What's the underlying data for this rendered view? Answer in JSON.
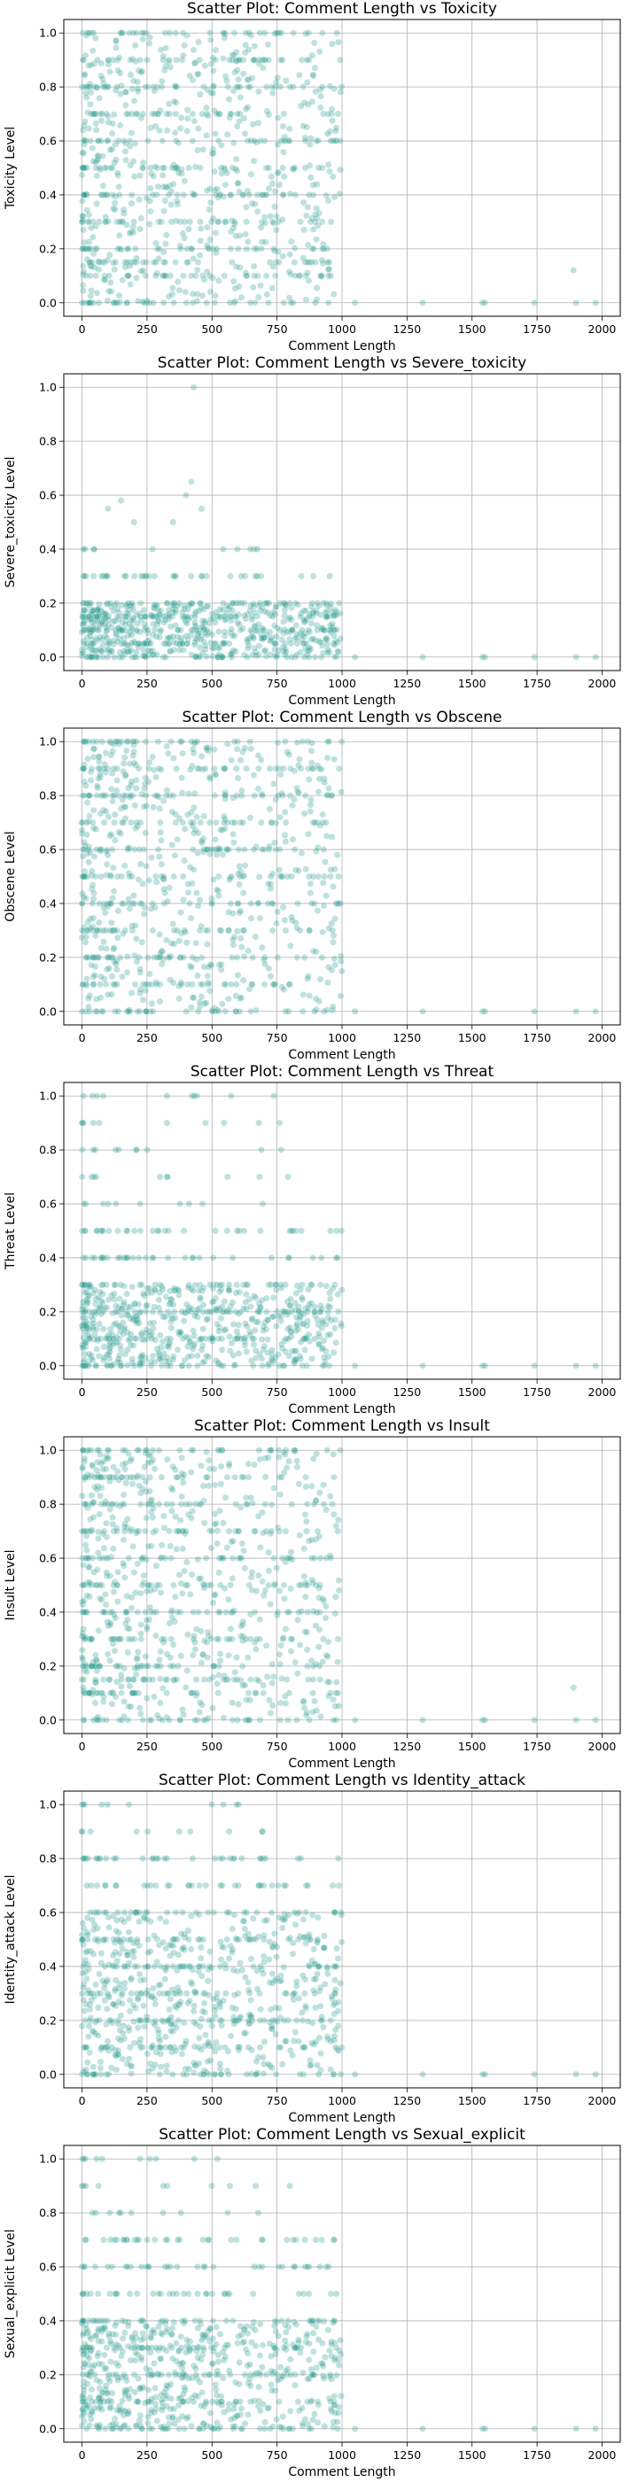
{
  "chart_data": [
    {
      "type": "scatter",
      "title": "Scatter Plot: Comment Length vs Toxicity",
      "xlabel": "Comment Length",
      "ylabel": "Toxicity Level",
      "xlim": [
        -70,
        2070
      ],
      "ylim": [
        -0.05,
        1.05
      ],
      "xticks": [
        0,
        250,
        500,
        750,
        1000,
        1250,
        1500,
        1750,
        2000
      ],
      "yticks": [
        0.0,
        0.2,
        0.4,
        0.6,
        0.8,
        1.0
      ],
      "grid": true,
      "color": "#2a9d8f",
      "series": [
        {
          "main_x_range": [
            0,
            1000
          ],
          "main_y_range": [
            0.0,
            1.0
          ],
          "bands": [
            0.0,
            0.1,
            0.15,
            0.2,
            0.3,
            0.4,
            0.5,
            0.6,
            0.7,
            0.8,
            0.9,
            1.0
          ],
          "sparse_bands": [],
          "outliers": [
            [
              1050,
              0.0
            ],
            [
              1310,
              0.0
            ],
            [
              1540,
              0.0
            ],
            [
              1550,
              0.0
            ],
            [
              1740,
              0.0
            ],
            [
              1890,
              0.12
            ],
            [
              1900,
              0.0
            ],
            [
              1975,
              0.0
            ]
          ]
        }
      ]
    },
    {
      "type": "scatter",
      "title": "Scatter Plot: Comment Length vs Severe_toxicity",
      "xlabel": "Comment Length",
      "ylabel": "Severe_toxicity Level",
      "xlim": [
        -70,
        2070
      ],
      "ylim": [
        -0.05,
        1.05
      ],
      "xticks": [
        0,
        250,
        500,
        750,
        1000,
        1250,
        1500,
        1750,
        2000
      ],
      "yticks": [
        0.0,
        0.2,
        0.4,
        0.6,
        0.8,
        1.0
      ],
      "grid": true,
      "color": "#2a9d8f",
      "series": [
        {
          "main_x_range": [
            0,
            1000
          ],
          "main_y_range": [
            0.0,
            0.2
          ],
          "bands": [
            0.0,
            0.05,
            0.1,
            0.15,
            0.2,
            0.3
          ],
          "sparse_bands": [
            0.4
          ],
          "outliers": [
            [
              1050,
              0.0
            ],
            [
              1310,
              0.0
            ],
            [
              1540,
              0.0
            ],
            [
              1550,
              0.0
            ],
            [
              1740,
              0.0
            ],
            [
              1900,
              0.0
            ],
            [
              1975,
              0.0
            ],
            [
              100,
              0.55
            ],
            [
              150,
              0.58
            ],
            [
              200,
              0.5
            ],
            [
              350,
              0.5
            ],
            [
              400,
              0.6
            ],
            [
              420,
              0.65
            ],
            [
              430,
              1.0
            ],
            [
              460,
              0.55
            ]
          ]
        }
      ]
    },
    {
      "type": "scatter",
      "title": "Scatter Plot: Comment Length vs Obscene",
      "xlabel": "Comment Length",
      "ylabel": "Obscene Level",
      "xlim": [
        -70,
        2070
      ],
      "ylim": [
        -0.05,
        1.05
      ],
      "xticks": [
        0,
        250,
        500,
        750,
        1000,
        1250,
        1500,
        1750,
        2000
      ],
      "yticks": [
        0.0,
        0.2,
        0.4,
        0.6,
        0.8,
        1.0
      ],
      "grid": true,
      "color": "#2a9d8f",
      "series": [
        {
          "main_x_range": [
            0,
            1000
          ],
          "main_y_range": [
            0.0,
            1.0
          ],
          "bands": [
            0.0,
            0.1,
            0.2,
            0.3,
            0.4,
            0.5,
            0.6,
            0.7,
            0.8,
            0.9,
            1.0
          ],
          "sparse_bands": [],
          "outliers": [
            [
              1050,
              0.0
            ],
            [
              1310,
              0.0
            ],
            [
              1540,
              0.0
            ],
            [
              1550,
              0.0
            ],
            [
              1740,
              0.0
            ],
            [
              1900,
              0.0
            ],
            [
              1975,
              0.0
            ]
          ]
        }
      ]
    },
    {
      "type": "scatter",
      "title": "Scatter Plot: Comment Length vs Threat",
      "xlabel": "Comment Length",
      "ylabel": "Threat Level",
      "xlim": [
        -70,
        2070
      ],
      "ylim": [
        -0.05,
        1.05
      ],
      "xticks": [
        0,
        250,
        500,
        750,
        1000,
        1250,
        1500,
        1750,
        2000
      ],
      "yticks": [
        0.0,
        0.2,
        0.4,
        0.6,
        0.8,
        1.0
      ],
      "grid": true,
      "color": "#2a9d8f",
      "series": [
        {
          "main_x_range": [
            0,
            1000
          ],
          "main_y_range": [
            0.0,
            0.3
          ],
          "bands": [
            0.0,
            0.1,
            0.2,
            0.3,
            0.4,
            0.5
          ],
          "sparse_bands": [
            0.6,
            0.7,
            0.8,
            0.9,
            1.0
          ],
          "outliers": [
            [
              1050,
              0.0
            ],
            [
              1310,
              0.0
            ],
            [
              1540,
              0.0
            ],
            [
              1550,
              0.0
            ],
            [
              1740,
              0.0
            ],
            [
              1900,
              0.0
            ],
            [
              1975,
              0.0
            ]
          ]
        }
      ]
    },
    {
      "type": "scatter",
      "title": "Scatter Plot: Comment Length vs Insult",
      "xlabel": "Comment Length",
      "ylabel": "Insult Level",
      "xlim": [
        -70,
        2070
      ],
      "ylim": [
        -0.05,
        1.05
      ],
      "xticks": [
        0,
        250,
        500,
        750,
        1000,
        1250,
        1500,
        1750,
        2000
      ],
      "yticks": [
        0.0,
        0.2,
        0.4,
        0.6,
        0.8,
        1.0
      ],
      "grid": true,
      "color": "#2a9d8f",
      "series": [
        {
          "main_x_range": [
            0,
            1000
          ],
          "main_y_range": [
            0.0,
            1.0
          ],
          "bands": [
            0.0,
            0.1,
            0.15,
            0.2,
            0.3,
            0.4,
            0.5,
            0.6,
            0.7,
            0.8,
            0.9,
            1.0
          ],
          "sparse_bands": [],
          "outliers": [
            [
              1050,
              0.0
            ],
            [
              1310,
              0.0
            ],
            [
              1540,
              0.0
            ],
            [
              1550,
              0.0
            ],
            [
              1740,
              0.0
            ],
            [
              1890,
              0.12
            ],
            [
              1900,
              0.0
            ],
            [
              1975,
              0.0
            ]
          ]
        }
      ]
    },
    {
      "type": "scatter",
      "title": "Scatter Plot: Comment Length vs Identity_attack",
      "xlabel": "Comment Length",
      "ylabel": "Identity_attack Level",
      "xlim": [
        -70,
        2070
      ],
      "ylim": [
        -0.05,
        1.05
      ],
      "xticks": [
        0,
        250,
        500,
        750,
        1000,
        1250,
        1500,
        1750,
        2000
      ],
      "yticks": [
        0.0,
        0.2,
        0.4,
        0.6,
        0.8,
        1.0
      ],
      "grid": true,
      "color": "#2a9d8f",
      "series": [
        {
          "main_x_range": [
            0,
            1000
          ],
          "main_y_range": [
            0.0,
            0.6
          ],
          "bands": [
            0.0,
            0.1,
            0.2,
            0.3,
            0.4,
            0.5,
            0.6,
            0.7,
            0.8
          ],
          "sparse_bands": [
            0.9,
            1.0
          ],
          "outliers": [
            [
              1050,
              0.0
            ],
            [
              1310,
              0.0
            ],
            [
              1540,
              0.0
            ],
            [
              1550,
              0.0
            ],
            [
              1740,
              0.0
            ],
            [
              1900,
              0.0
            ],
            [
              1975,
              0.0
            ]
          ]
        }
      ]
    },
    {
      "type": "scatter",
      "title": "Scatter Plot: Comment Length vs Sexual_explicit",
      "xlabel": "Comment Length",
      "ylabel": "Sexual_explicit Level",
      "xlim": [
        -70,
        2070
      ],
      "ylim": [
        -0.05,
        1.05
      ],
      "xticks": [
        0,
        250,
        500,
        750,
        1000,
        1250,
        1500,
        1750,
        2000
      ],
      "yticks": [
        0.0,
        0.2,
        0.4,
        0.6,
        0.8,
        1.0
      ],
      "grid": true,
      "color": "#2a9d8f",
      "series": [
        {
          "main_x_range": [
            0,
            1000
          ],
          "main_y_range": [
            0.0,
            0.4
          ],
          "bands": [
            0.0,
            0.1,
            0.2,
            0.3,
            0.4,
            0.5,
            0.6,
            0.7
          ],
          "sparse_bands": [
            0.8,
            0.9,
            1.0
          ],
          "outliers": [
            [
              1050,
              0.0
            ],
            [
              1310,
              0.0
            ],
            [
              1540,
              0.0
            ],
            [
              1550,
              0.0
            ],
            [
              1740,
              0.0
            ],
            [
              1900,
              0.0
            ],
            [
              1975,
              0.0
            ]
          ]
        }
      ]
    }
  ]
}
